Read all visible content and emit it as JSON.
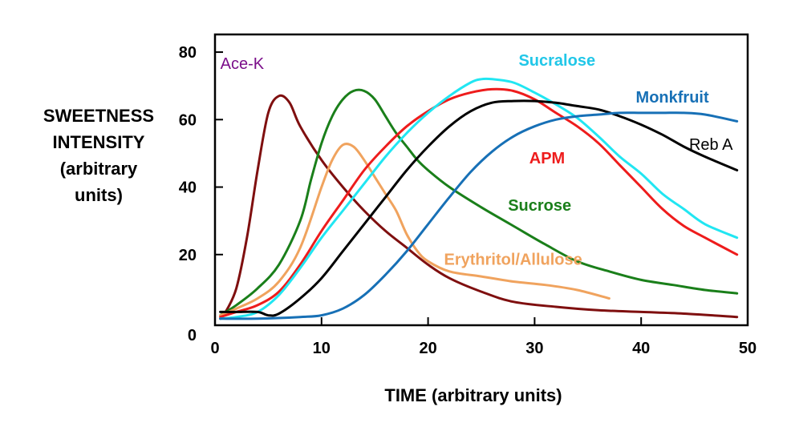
{
  "chart_data": {
    "type": "line",
    "xlabel": "TIME (arbitrary units)",
    "ylabel_lines": [
      "SWEETNESS",
      "INTENSITY",
      "(arbitrary",
      "units)"
    ],
    "xlim": [
      0,
      50
    ],
    "ylim": [
      0,
      85
    ],
    "x_ticks": [
      "0",
      "10",
      "20",
      "30",
      "40",
      "50"
    ],
    "y_ticks": [
      "0",
      "20",
      "40",
      "60",
      "80"
    ],
    "grid": false,
    "series": [
      {
        "name": "Ace-K",
        "color": "#7f0f0f",
        "x": [
          0.5,
          1,
          2,
          3,
          4,
          5,
          6,
          7,
          8,
          10,
          12,
          14,
          16,
          18,
          20,
          22,
          25,
          28,
          32,
          36,
          40,
          44,
          49
        ],
        "y": [
          1,
          3,
          10,
          25,
          45,
          62,
          67,
          65,
          58,
          48,
          40,
          33,
          27,
          22,
          17,
          13,
          9,
          6,
          4.5,
          3.5,
          3,
          2.5,
          1.5
        ]
      },
      {
        "name": "Sucrose",
        "color": "#1a7f1a",
        "x": [
          0.5,
          2,
          4,
          6,
          8,
          9,
          10,
          11,
          12,
          13,
          14,
          15,
          16,
          17,
          18,
          19,
          20,
          22,
          25,
          28,
          31,
          34,
          37,
          40,
          43,
          46,
          49
        ],
        "y": [
          2,
          5,
          10,
          17,
          30,
          42,
          53,
          61,
          66,
          68.5,
          68.5,
          66,
          61,
          56,
          52,
          48,
          45,
          40,
          34,
          28.5,
          23,
          18,
          15,
          12.5,
          11,
          9.5,
          8.5
        ]
      },
      {
        "name": "Erythritol/Allulose",
        "color": "#f0a35e",
        "x": [
          0.5,
          2,
          4,
          6,
          8,
          10,
          11,
          12,
          13,
          14,
          15,
          16,
          17,
          18,
          19,
          20,
          22,
          25,
          28,
          31,
          34,
          37
        ],
        "y": [
          2,
          4,
          7,
          12,
          22,
          40,
          48,
          52.5,
          52,
          48,
          43,
          38,
          33,
          26,
          21,
          18,
          15,
          13.5,
          12,
          11,
          9.5,
          7
        ]
      },
      {
        "name": "APM",
        "color": "#ee1c1c",
        "x": [
          0.5,
          2,
          4,
          6,
          8,
          10,
          12,
          14,
          16,
          18,
          20,
          22,
          24,
          26,
          28,
          30,
          32,
          34,
          36,
          38,
          40,
          42,
          44,
          46,
          49
        ],
        "y": [
          1.5,
          3,
          5,
          9,
          17,
          27,
          36,
          45,
          52,
          58,
          62.5,
          66,
          68,
          69,
          68.5,
          66,
          62,
          58,
          53,
          46.5,
          40,
          33.5,
          28.5,
          25,
          20
        ]
      },
      {
        "name": "Sucralose",
        "color": "#21e6f2",
        "x": [
          0.5,
          2,
          4,
          6,
          8,
          10,
          12,
          14,
          16,
          18,
          20,
          22,
          24,
          25,
          26,
          28,
          30,
          32,
          34,
          36,
          38,
          40,
          42,
          44,
          46,
          49
        ],
        "y": [
          1,
          1.5,
          3,
          8,
          16,
          25,
          33,
          41,
          49,
          56,
          62,
          67,
          71,
          72,
          72,
          71,
          68,
          64.5,
          60.5,
          55,
          49,
          44,
          38,
          33.5,
          29,
          25
        ]
      },
      {
        "name": "Reb A",
        "color": "#000000",
        "x": [
          0.5,
          2,
          4,
          5,
          6,
          8,
          10,
          12,
          14,
          16,
          18,
          20,
          22,
          24,
          26,
          28,
          30,
          32,
          34,
          36,
          38,
          40,
          42,
          44,
          46,
          49
        ],
        "y": [
          3,
          3,
          3,
          2,
          2.5,
          7,
          13,
          21,
          29,
          37,
          45,
          52,
          58,
          62.5,
          65,
          65.5,
          65.5,
          65,
          64,
          63,
          61,
          58.5,
          55.5,
          52,
          49,
          45
        ]
      },
      {
        "name": "Monkfruit",
        "color": "#1770b6",
        "x": [
          0.5,
          4,
          8,
          10,
          12,
          14,
          16,
          18,
          20,
          22,
          24,
          26,
          28,
          30,
          32,
          34,
          36,
          38,
          40,
          42,
          44,
          46,
          49
        ],
        "y": [
          1,
          1,
          1.5,
          2,
          4,
          8,
          14,
          21,
          29,
          37,
          44.5,
          50.5,
          55,
          58,
          60,
          61,
          61.5,
          62,
          62,
          62,
          62,
          61.5,
          59.5
        ]
      }
    ],
    "series_labels": [
      {
        "text": "Ace-K",
        "series": "Ace-K",
        "x": 0.5,
        "y": 75,
        "color": "#7b0e8a",
        "bold": false
      },
      {
        "text": "Sucralose",
        "series": "Sucralose",
        "x": 28.5,
        "y": 76,
        "color": "#21c7e8",
        "bold": true
      },
      {
        "text": "Monkfruit",
        "series": "Monkfruit",
        "x": 39.5,
        "y": 65,
        "color": "#1770b6",
        "bold": true
      },
      {
        "text": "Reb A",
        "series": "Reb A",
        "x": 44.5,
        "y": 51,
        "color": "#000000",
        "bold": false
      },
      {
        "text": "APM",
        "series": "APM",
        "x": 29.5,
        "y": 47,
        "color": "#ee1c1c",
        "bold": true
      },
      {
        "text": "Sucrose",
        "series": "Sucrose",
        "x": 27.5,
        "y": 33,
        "color": "#1a7f1a",
        "bold": true
      },
      {
        "text": "Erythritol/Allulose",
        "series": "Erythritol/Allulose",
        "x": 21.5,
        "y": 17,
        "color": "#f0a35e",
        "bold": true
      }
    ]
  }
}
